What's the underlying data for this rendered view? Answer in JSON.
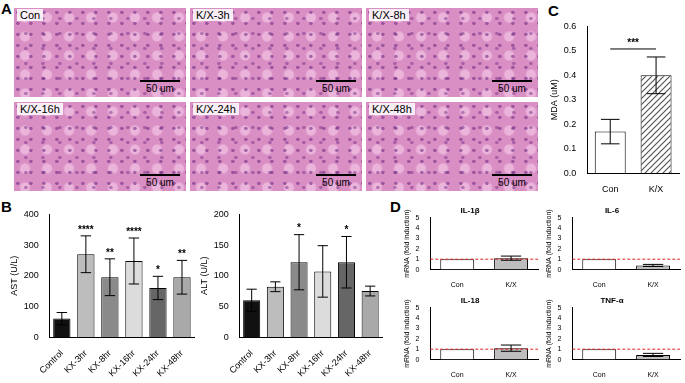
{
  "images": {
    "panel": "A",
    "tiles": [
      {
        "label": "Con",
        "scale_bar": "50 um"
      },
      {
        "label": "K/X-3h",
        "scale_bar": "50 um"
      },
      {
        "label": "K/X-8h",
        "scale_bar": "50 um"
      },
      {
        "label": "K/X-16h",
        "scale_bar": "50 um"
      },
      {
        "label": "K/X-24h",
        "scale_bar": "50 um"
      },
      {
        "label": "K/X-48h",
        "scale_bar": "50 um"
      }
    ]
  },
  "chart_data": [
    {
      "panel": "B",
      "type": "bar",
      "ylabel": "AST (U/L)",
      "categories": [
        "Control",
        "KX-3hr",
        "KX-8hr",
        "KX-16hr",
        "KX-24hr",
        "KX-48hr"
      ],
      "values": [
        60,
        270,
        195,
        248,
        160,
        195
      ],
      "errors": [
        20,
        60,
        60,
        75,
        38,
        55
      ],
      "significance": [
        null,
        "****",
        "**",
        "****",
        "*",
        "**"
      ],
      "colors": [
        "#111111",
        "#bdbdbd",
        "#8a8a8a",
        "#dcdcdc",
        "#666666",
        "#a9a9a9"
      ],
      "ylim": [
        0,
        400
      ],
      "yticks": [
        0,
        100,
        200,
        300,
        400
      ],
      "grid": false
    },
    {
      "type": "bar",
      "ylabel": "ALT (U/L)",
      "categories": [
        "Control",
        "KX-3hr",
        "KX-8hr",
        "KX-16hr",
        "KX-24hr",
        "KX-48hr"
      ],
      "values": [
        60,
        82,
        122,
        107,
        122,
        75
      ],
      "errors": [
        18,
        8,
        45,
        42,
        42,
        8
      ],
      "significance": [
        null,
        null,
        "*",
        null,
        "*",
        null
      ],
      "colors": [
        "#111111",
        "#bdbdbd",
        "#8a8a8a",
        "#dcdcdc",
        "#666666",
        "#a9a9a9"
      ],
      "ylim": [
        0,
        200
      ],
      "yticks": [
        0,
        50,
        100,
        150,
        200
      ],
      "grid": false
    },
    {
      "panel": "C",
      "type": "bar",
      "ylabel": "MDA (uM)",
      "categories": [
        "Con",
        "K/X"
      ],
      "values": [
        0.17,
        0.4
      ],
      "errors": [
        0.05,
        0.075
      ],
      "comparison": "***",
      "colors": [
        "#ffffff",
        "#555555"
      ],
      "ylim": [
        0,
        0.6
      ],
      "yticks": [
        {
          "value": 0,
          "label": "0.0"
        },
        0.1,
        0.2,
        0.3,
        0.4,
        0.5,
        0.6
      ],
      "grid": false
    },
    {
      "panel": "D",
      "type": "bar",
      "title": "IL-1β",
      "ylabel": "mRNA (fold induction)",
      "categories": [
        "Con",
        "K/X"
      ],
      "values": [
        1,
        1.1
      ],
      "errors": [
        0,
        0.2
      ],
      "reference_line": 1,
      "colors": [
        "#ffffff",
        "#bdbdbd"
      ],
      "ylim": [
        0,
        5
      ],
      "yticks": [
        0,
        1,
        2,
        3,
        4,
        5
      ],
      "grid": false
    },
    {
      "type": "bar",
      "title": "IL-6",
      "ylabel": "mRNA (fold induction)",
      "categories": [
        "Con",
        "K/X"
      ],
      "values": [
        1,
        0.4
      ],
      "errors": [
        0,
        0.1
      ],
      "reference_line": 1,
      "colors": [
        "#ffffff",
        "#bdbdbd"
      ],
      "ylim": [
        0,
        5
      ],
      "yticks": [
        0,
        1,
        2,
        3,
        4,
        5
      ],
      "grid": false
    },
    {
      "type": "bar",
      "title": "IL-18",
      "ylabel": "mRNA (fold induction)",
      "categories": [
        "Con",
        "K/X"
      ],
      "values": [
        1,
        1.1
      ],
      "errors": [
        0,
        0.3
      ],
      "reference_line": 1,
      "colors": [
        "#ffffff",
        "#bdbdbd"
      ],
      "ylim": [
        0,
        5
      ],
      "yticks": [
        0,
        1,
        2,
        3,
        4,
        5
      ],
      "grid": false
    },
    {
      "type": "bar",
      "title": "TNF-α",
      "ylabel": "mRNA (fold induction)",
      "categories": [
        "Con",
        "K/X"
      ],
      "values": [
        1,
        0.45
      ],
      "errors": [
        0,
        0.15
      ],
      "reference_line": 1,
      "colors": [
        "#ffffff",
        "#bdbdbd"
      ],
      "ylim": [
        0,
        5
      ],
      "yticks": [
        0,
        1,
        2,
        3,
        4,
        5
      ],
      "grid": false
    }
  ]
}
